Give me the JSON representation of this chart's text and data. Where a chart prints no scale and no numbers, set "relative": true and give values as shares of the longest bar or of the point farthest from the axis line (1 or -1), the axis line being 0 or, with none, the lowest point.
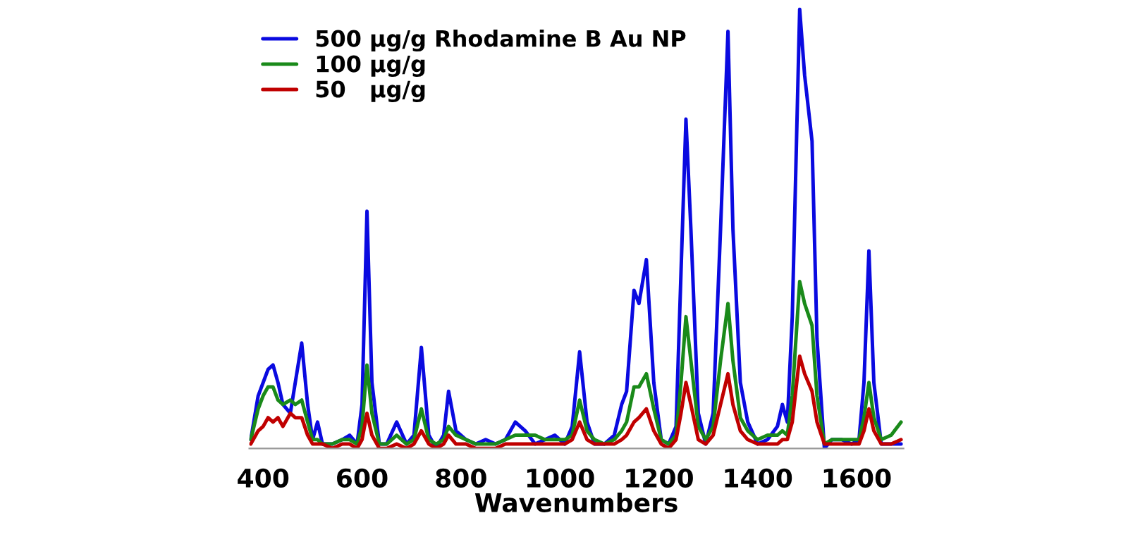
{
  "chart_data": {
    "type": "line",
    "relative": true,
    "xlabel": "Wavenumbers",
    "x": [
      375,
      390,
      400,
      410,
      420,
      430,
      440,
      455,
      465,
      478,
      490,
      500,
      510,
      520,
      540,
      560,
      575,
      590,
      600,
      610,
      620,
      635,
      650,
      670,
      690,
      705,
      720,
      735,
      750,
      765,
      775,
      790,
      810,
      830,
      850,
      870,
      890,
      910,
      930,
      950,
      970,
      990,
      1010,
      1025,
      1040,
      1055,
      1070,
      1090,
      1110,
      1125,
      1135,
      1150,
      1160,
      1175,
      1190,
      1205,
      1220,
      1235,
      1245,
      1255,
      1265,
      1280,
      1295,
      1310,
      1325,
      1340,
      1350,
      1365,
      1380,
      1400,
      1420,
      1440,
      1450,
      1460,
      1470,
      1485,
      1495,
      1510,
      1520,
      1535,
      1550,
      1570,
      1590,
      1605,
      1615,
      1625,
      1635,
      1650,
      1670,
      1690
    ],
    "xlim": [
      372,
      1695
    ],
    "xticks": [
      400,
      600,
      800,
      1000,
      1200,
      1400,
      1600
    ],
    "legend": "top left",
    "grid": false,
    "marker": "none",
    "line_style": "solid",
    "series": [
      {
        "name": "500 µg/g Rhodamine B Au NP",
        "color": "#0a0ae0",
        "values": [
          0.02,
          0.12,
          0.15,
          0.18,
          0.19,
          0.15,
          0.1,
          0.08,
          0.15,
          0.24,
          0.1,
          0.02,
          0.06,
          0.01,
          0.01,
          0.02,
          0.03,
          0.01,
          0.1,
          0.54,
          0.15,
          0.01,
          0.01,
          0.06,
          0.01,
          0.03,
          0.23,
          0.03,
          0.0,
          0.03,
          0.13,
          0.04,
          0.02,
          0.01,
          0.02,
          0.01,
          0.02,
          0.06,
          0.04,
          0.01,
          0.02,
          0.03,
          0.01,
          0.05,
          0.22,
          0.06,
          0.01,
          0.01,
          0.03,
          0.1,
          0.13,
          0.36,
          0.33,
          0.43,
          0.15,
          0.02,
          0.01,
          0.05,
          0.4,
          0.75,
          0.5,
          0.08,
          0.01,
          0.08,
          0.5,
          0.95,
          0.5,
          0.15,
          0.06,
          0.01,
          0.02,
          0.05,
          0.1,
          0.06,
          0.3,
          1.0,
          0.85,
          0.7,
          0.25,
          0.0,
          0.02,
          0.02,
          0.01,
          0.02,
          0.15,
          0.45,
          0.15,
          0.01,
          0.01,
          0.01
        ]
      },
      {
        "name": "100 µg/g",
        "color": "#1a8a1a",
        "values": [
          0.02,
          0.09,
          0.12,
          0.14,
          0.14,
          0.11,
          0.1,
          0.11,
          0.1,
          0.11,
          0.06,
          0.02,
          0.02,
          0.01,
          0.01,
          0.02,
          0.02,
          0.01,
          0.05,
          0.19,
          0.08,
          0.01,
          0.01,
          0.03,
          0.01,
          0.02,
          0.09,
          0.02,
          0.01,
          0.02,
          0.05,
          0.03,
          0.02,
          0.01,
          0.01,
          0.01,
          0.02,
          0.03,
          0.03,
          0.03,
          0.02,
          0.02,
          0.02,
          0.03,
          0.11,
          0.04,
          0.02,
          0.01,
          0.02,
          0.04,
          0.06,
          0.14,
          0.14,
          0.17,
          0.09,
          0.02,
          0.01,
          0.03,
          0.15,
          0.3,
          0.2,
          0.05,
          0.02,
          0.05,
          0.2,
          0.33,
          0.2,
          0.07,
          0.04,
          0.02,
          0.03,
          0.03,
          0.04,
          0.03,
          0.12,
          0.38,
          0.33,
          0.28,
          0.12,
          0.01,
          0.02,
          0.02,
          0.02,
          0.02,
          0.07,
          0.15,
          0.07,
          0.02,
          0.03,
          0.06
        ]
      },
      {
        "name": "50   µg/g",
        "color": "#c00000",
        "values": [
          0.01,
          0.04,
          0.05,
          0.07,
          0.06,
          0.07,
          0.05,
          0.08,
          0.07,
          0.07,
          0.03,
          0.01,
          0.01,
          0.01,
          0.0,
          0.01,
          0.01,
          0.0,
          0.02,
          0.08,
          0.03,
          0.0,
          0.0,
          0.01,
          0.0,
          0.01,
          0.04,
          0.01,
          0.0,
          0.01,
          0.03,
          0.01,
          0.01,
          0.0,
          0.0,
          0.0,
          0.01,
          0.01,
          0.01,
          0.01,
          0.01,
          0.01,
          0.01,
          0.02,
          0.06,
          0.02,
          0.01,
          0.01,
          0.01,
          0.02,
          0.03,
          0.06,
          0.07,
          0.09,
          0.04,
          0.01,
          0.0,
          0.02,
          0.08,
          0.15,
          0.1,
          0.02,
          0.01,
          0.03,
          0.1,
          0.17,
          0.1,
          0.04,
          0.02,
          0.01,
          0.01,
          0.01,
          0.02,
          0.02,
          0.06,
          0.21,
          0.17,
          0.13,
          0.06,
          0.01,
          0.01,
          0.01,
          0.01,
          0.01,
          0.04,
          0.09,
          0.04,
          0.01,
          0.01,
          0.02
        ]
      }
    ]
  }
}
